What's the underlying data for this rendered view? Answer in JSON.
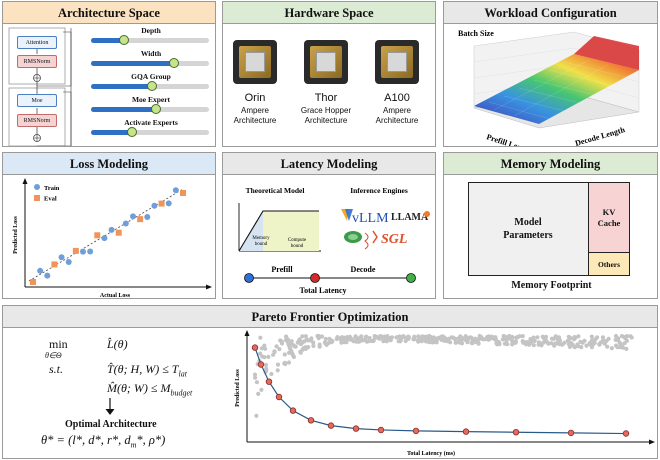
{
  "arch": {
    "title": "Architecture Space",
    "blocks": {
      "attention": "Attention",
      "rmsnorm1": "RMSNorm",
      "moe": "Moe",
      "rmsnorm2": "RMSNorm"
    },
    "sliders": [
      {
        "label": "Depth",
        "value": 0.28
      },
      {
        "label": "Width",
        "value": 0.7
      },
      {
        "label": "GQA Group",
        "value": 0.52
      },
      {
        "label": "Moe Expert",
        "value": 0.55
      },
      {
        "label": "Activate Experts",
        "value": 0.35
      }
    ]
  },
  "hardware": {
    "title": "Hardware Space",
    "items": [
      {
        "name": "Orin",
        "arch": "Ampere\nArchitecture"
      },
      {
        "name": "Thor",
        "arch": "Grace Hopper\nArchitecture"
      },
      {
        "name": "A100",
        "arch": "Ampere\nArchitecture"
      }
    ]
  },
  "workload": {
    "title": "Workload Configuration",
    "z_label": "Batch Size",
    "x_label": "Prefill Length",
    "y_label": "Decode Length"
  },
  "loss": {
    "title": "Loss Modeling",
    "legend_train": "Train",
    "legend_eval": "Eval",
    "ylabel": "Predicted Loss",
    "xlabel": "Actual Loss",
    "colors": {
      "train": "#6e9fd8",
      "eval": "#f0955a"
    }
  },
  "latency": {
    "title": "Latency Modeling",
    "theoretical": "Theoretical Model",
    "engines": "Inference Engines",
    "memory_bound": "Memory\nbound",
    "compute_bound": "Compute\nbound",
    "engine_vllm": "vLLM",
    "engine_llama": "LLAMA",
    "engine_sglang": "SGL",
    "prefill": "Prefill",
    "decode": "Decode",
    "total": "Total Latency"
  },
  "memory": {
    "title": "Memory Modeling",
    "model_params": "Model\nParameters",
    "kv_cache": "KV\nCache",
    "others": "Others",
    "footprint": "Memory Footprint"
  },
  "pareto": {
    "title": "Pareto Frontier Optimization",
    "ylabel": "Predicted Loss",
    "xlabel": "Total Latency (ms)",
    "optimal_label": "Optimal Architecture"
  }
}
